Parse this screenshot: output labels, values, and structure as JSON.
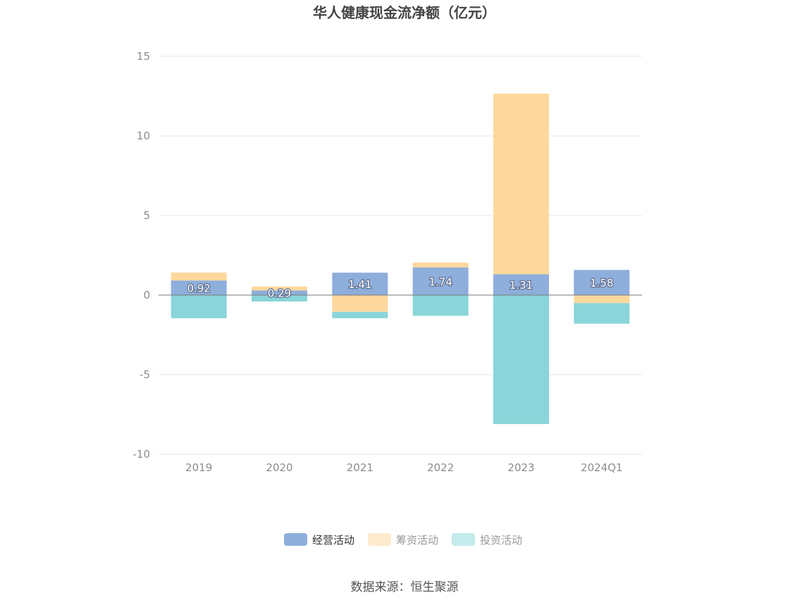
{
  "chart_data": {
    "type": "bar",
    "stacked": true,
    "title": "华人健康现金流净额（亿元）",
    "categories": [
      "2019",
      "2020",
      "2021",
      "2022",
      "2023",
      "2024Q1"
    ],
    "series": [
      {
        "name": "经营活动",
        "color": "#8eaedc",
        "values": [
          0.92,
          0.29,
          1.41,
          1.74,
          1.31,
          1.58
        ],
        "show_labels": true
      },
      {
        "name": "筹资活动",
        "color": "#fdd89c",
        "values": [
          0.5,
          0.25,
          -1.05,
          0.3,
          11.35,
          -0.5
        ]
      },
      {
        "name": "投资活动",
        "color": "#89d5d9",
        "values": [
          -1.45,
          -0.4,
          -0.4,
          -1.3,
          -8.1,
          -1.3
        ]
      }
    ],
    "ylim": [
      -10,
      15
    ],
    "yticks": [
      15,
      10,
      5,
      0,
      -5,
      -10
    ],
    "grid": true,
    "legend_position": "bottom",
    "legend_inactive_series": [
      "筹资活动",
      "投资活动"
    ],
    "source": "数据来源：恒生聚源"
  }
}
